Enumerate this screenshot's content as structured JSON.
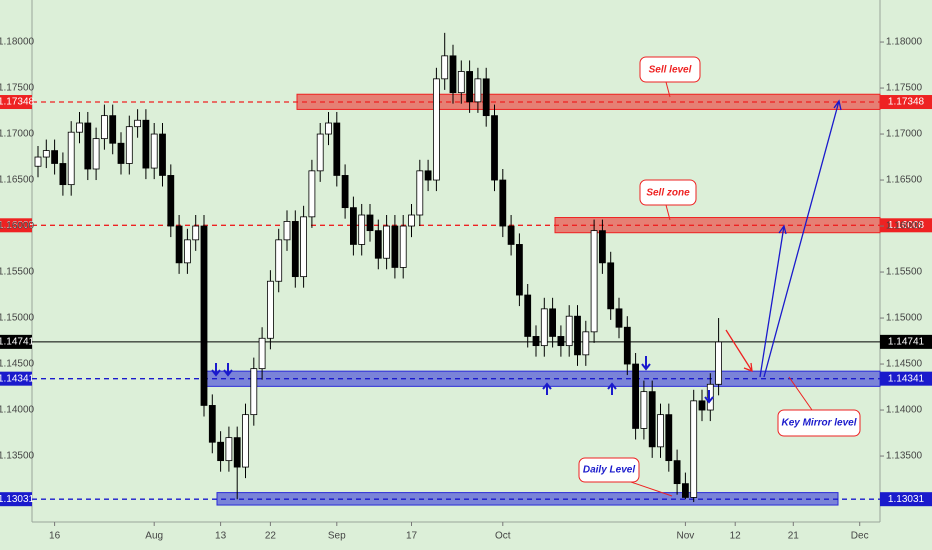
{
  "chart_data": {
    "type": "candlestick",
    "categories": [
      null,
      null,
      "16",
      null,
      null,
      null,
      null,
      null,
      null,
      null,
      null,
      null,
      null,
      null,
      "Aug",
      null,
      null,
      null,
      null,
      null,
      null,
      null,
      "13",
      null,
      null,
      null,
      null,
      null,
      "22",
      null,
      null,
      null,
      null,
      null,
      null,
      null,
      "Sep",
      null,
      null,
      null,
      null,
      null,
      null,
      null,
      null,
      "17",
      null,
      null,
      null,
      null,
      null,
      null,
      null,
      null,
      null,
      null,
      "Oct",
      null,
      null,
      null,
      null,
      null,
      null,
      null,
      null,
      null,
      null,
      null,
      null,
      null,
      null,
      null,
      null,
      null,
      null,
      null,
      null,
      null,
      "Nov",
      null,
      null,
      null,
      null,
      null,
      "12",
      null,
      null,
      null,
      null,
      null,
      null,
      "21",
      null,
      null,
      null,
      null,
      null,
      null,
      null,
      "Dec"
    ],
    "open": [
      1.1665,
      1.1675,
      1.1682,
      1.1668,
      1.1645,
      1.1702,
      1.1712,
      1.1662,
      1.1695,
      1.172,
      1.169,
      1.1668,
      1.1708,
      1.1715,
      1.1663,
      1.17,
      1.1655,
      1.16,
      1.156,
      1.1585,
      1.16,
      1.1405,
      1.1365,
      1.1345,
      1.137,
      1.1338,
      1.1395,
      1.1445,
      1.1478,
      1.154,
      1.1585,
      1.1605,
      1.1545,
      1.161,
      1.166,
      1.17,
      1.1712,
      1.1655,
      1.162,
      1.158,
      1.1612,
      1.1595,
      1.1565,
      1.16,
      1.1555,
      1.16,
      1.1612,
      1.166,
      1.165,
      1.176,
      1.1785,
      1.1745,
      1.1768,
      1.1735,
      1.176,
      1.172,
      1.165,
      1.16,
      1.158,
      1.1525,
      1.148,
      1.147,
      1.151,
      1.148,
      1.147,
      1.1502,
      1.146,
      1.1485,
      1.1595,
      1.156,
      1.151,
      1.149,
      1.145,
      1.138,
      1.142,
      1.136,
      1.1395,
      1.1345,
      1.132,
      1.1305,
      1.141,
      1.14,
      1.1428,
      null,
      null,
      null,
      null,
      null,
      null,
      null,
      null,
      null,
      null,
      null,
      null,
      null,
      null,
      null,
      null,
      null
    ],
    "high": [
      1.1687,
      1.1694,
      1.1694,
      1.168,
      1.1714,
      1.1724,
      1.1724,
      1.1707,
      1.1732,
      1.1732,
      1.1702,
      1.172,
      1.1727,
      1.1727,
      1.1712,
      1.1712,
      1.1667,
      1.1612,
      1.1597,
      1.1612,
      1.1612,
      1.1417,
      1.1377,
      1.1382,
      1.1382,
      1.1407,
      1.1457,
      1.149,
      1.1552,
      1.1597,
      1.1617,
      1.1617,
      1.1622,
      1.1672,
      1.1712,
      1.1724,
      1.1724,
      1.1667,
      1.1632,
      1.1624,
      1.1624,
      1.1607,
      1.1612,
      1.1612,
      1.1612,
      1.1624,
      1.1672,
      1.1672,
      1.1772,
      1.181,
      1.1797,
      1.178,
      1.178,
      1.1772,
      1.1772,
      1.1732,
      1.1662,
      1.1612,
      1.1592,
      1.1537,
      1.1492,
      1.1522,
      1.1522,
      1.1492,
      1.1514,
      1.1514,
      1.1497,
      1.1607,
      1.1607,
      1.1572,
      1.1522,
      1.1502,
      1.1462,
      1.1432,
      1.1432,
      1.1407,
      1.1407,
      1.1357,
      1.1332,
      1.1422,
      1.1422,
      1.144,
      1.15,
      null,
      null,
      null,
      null,
      null,
      null,
      null,
      null,
      null,
      null,
      null,
      null,
      null,
      null,
      null,
      null,
      null
    ],
    "low": [
      1.1653,
      1.1663,
      1.1656,
      1.1633,
      1.1633,
      1.169,
      1.165,
      1.165,
      1.1683,
      1.1678,
      1.1656,
      1.1656,
      1.1696,
      1.1651,
      1.1651,
      1.1643,
      1.1588,
      1.1548,
      1.1548,
      1.1573,
      1.1393,
      1.1353,
      1.1333,
      1.1333,
      1.1303,
      1.1326,
      1.1383,
      1.1433,
      1.1466,
      1.1528,
      1.1573,
      1.1533,
      1.1533,
      1.1598,
      1.1648,
      1.1688,
      1.1643,
      1.1608,
      1.1568,
      1.1568,
      1.1583,
      1.1553,
      1.1553,
      1.1543,
      1.1543,
      1.1588,
      1.16,
      1.1638,
      1.1638,
      1.1748,
      1.1733,
      1.1733,
      1.1723,
      1.1723,
      1.1708,
      1.1638,
      1.1588,
      1.1568,
      1.1513,
      1.1468,
      1.1458,
      1.1458,
      1.1468,
      1.1458,
      1.1458,
      1.1448,
      1.1448,
      1.1473,
      1.1548,
      1.1498,
      1.1478,
      1.1438,
      1.1368,
      1.1368,
      1.1348,
      1.1348,
      1.1333,
      1.1308,
      1.1303,
      1.13,
      1.1388,
      1.1388,
      1.1416,
      null,
      null,
      null,
      null,
      null,
      null,
      null,
      null,
      null,
      null,
      null,
      null,
      null,
      null,
      null,
      null,
      null
    ],
    "close": [
      1.1675,
      1.1682,
      1.1668,
      1.1645,
      1.1702,
      1.1712,
      1.1662,
      1.1695,
      1.172,
      1.169,
      1.1668,
      1.1708,
      1.1715,
      1.1663,
      1.17,
      1.1655,
      1.16,
      1.156,
      1.1585,
      1.16,
      1.1405,
      1.1365,
      1.1345,
      1.137,
      1.1338,
      1.1395,
      1.1445,
      1.1478,
      1.154,
      1.1585,
      1.1605,
      1.1545,
      1.161,
      1.166,
      1.17,
      1.1712,
      1.1655,
      1.162,
      1.158,
      1.1612,
      1.1595,
      1.1565,
      1.16,
      1.1555,
      1.16,
      1.1612,
      1.166,
      1.165,
      1.176,
      1.1785,
      1.1745,
      1.1768,
      1.1735,
      1.176,
      1.172,
      1.165,
      1.16,
      1.158,
      1.1525,
      1.148,
      1.147,
      1.151,
      1.148,
      1.147,
      1.1502,
      1.146,
      1.1485,
      1.1595,
      1.156,
      1.151,
      1.149,
      1.145,
      1.138,
      1.142,
      1.136,
      1.1395,
      1.1345,
      1.132,
      1.1305,
      1.141,
      1.14,
      1.1428,
      1.1474,
      null,
      null,
      null,
      null,
      null,
      null,
      null,
      null,
      null,
      null,
      null,
      null,
      null,
      null,
      null,
      null,
      null
    ],
    "up_color": "#ffffff",
    "down_color": "#000000",
    "ylim": [
      1.12783,
      1.18457
    ],
    "yticks": [
      {
        "value": 1.135,
        "label": "1.13500"
      },
      {
        "value": 1.14,
        "label": "1.14000"
      },
      {
        "value": 1.145,
        "label": "1.14500"
      },
      {
        "value": 1.15,
        "label": "1.15000"
      },
      {
        "value": 1.155,
        "label": "1.15500"
      },
      {
        "value": 1.16,
        "label": "1.16000"
      },
      {
        "value": 1.165,
        "label": "1.16500"
      },
      {
        "value": 1.17,
        "label": "1.17000"
      },
      {
        "value": 1.175,
        "label": "1.17500"
      },
      {
        "value": 1.18,
        "label": "1.18000"
      }
    ],
    "levels": [
      {
        "value": 1.17348,
        "color": "#ee2222",
        "dashed": true
      },
      {
        "value": 1.16008,
        "color": "#ee2222",
        "dashed": true
      },
      {
        "value": 1.14741,
        "color": "#000000",
        "dashed": false
      },
      {
        "value": 1.14341,
        "color": "#1a1acc",
        "dashed": true
      },
      {
        "value": 1.13031,
        "color": "#1a1acc",
        "dashed": true
      }
    ],
    "zones": [
      {
        "name": "Sell level",
        "low": 1.173,
        "high": 1.174,
        "color": "#ee2222"
      },
      {
        "name": "Sell zone",
        "low": 1.1596,
        "high": 1.1606,
        "color": "#ee2222"
      },
      {
        "name": "Key Mirror level",
        "low": 1.1429,
        "high": 1.1439,
        "color": "#2a2ad8"
      },
      {
        "name": "Daily Level",
        "low": 1.13,
        "high": 1.1307,
        "color": "#2a2ad8"
      }
    ]
  }
}
